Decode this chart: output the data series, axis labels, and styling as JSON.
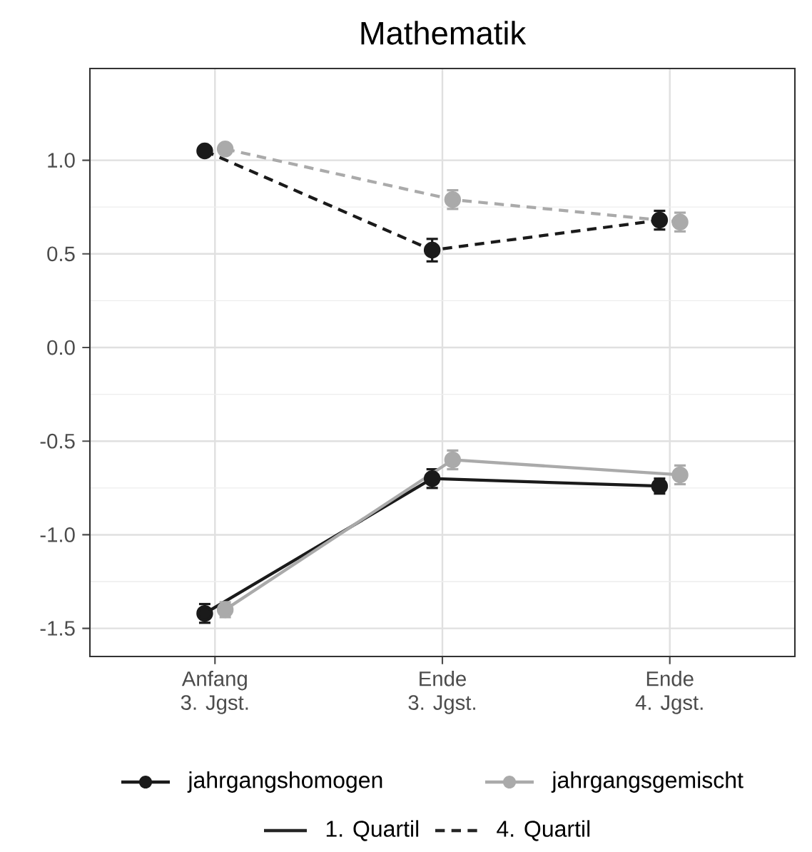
{
  "chart_data": {
    "type": "line",
    "title": "Mathematik",
    "categories": [
      "Anfang\n3. Jgst.",
      "Ende\n3. Jgst.",
      "Ende\n4. Jgst."
    ],
    "series": [
      {
        "name": "jahrgangshomogen",
        "color": "#1a1a1a",
        "line_style": "solid",
        "values": [
          -1.42,
          -0.7,
          -0.74
        ],
        "errors": [
          0.05,
          0.05,
          0.04
        ]
      },
      {
        "name": "jahrgangsgemischt",
        "color": "#aaaaaa",
        "line_style": "solid",
        "values": [
          -1.4,
          -0.6,
          -0.68
        ],
        "errors": [
          0.04,
          0.05,
          0.05
        ]
      },
      {
        "color": "#1a1a1a",
        "line_style": "dashed",
        "values": [
          1.05,
          0.52,
          0.68
        ],
        "errors": [
          0.02,
          0.06,
          0.05
        ]
      },
      {
        "color": "#aaaaaa",
        "line_style": "dashed",
        "values": [
          1.06,
          0.79,
          0.67
        ],
        "errors": [
          0.02,
          0.05,
          0.05
        ]
      }
    ],
    "ylim": [
      -1.65,
      1.49
    ],
    "yticks": [
      -1.5,
      {
        "value": -1.0,
        "label": "-1.0"
      },
      -0.5,
      {
        "value": 0.0,
        "label": "0.0"
      },
      0.5,
      {
        "value": 1.0,
        "label": "1.0"
      }
    ],
    "grid": true,
    "marker": "circle",
    "legend": "bottom",
    "annotations": [
      "1. Quartil",
      "4. Quartil"
    ]
  }
}
